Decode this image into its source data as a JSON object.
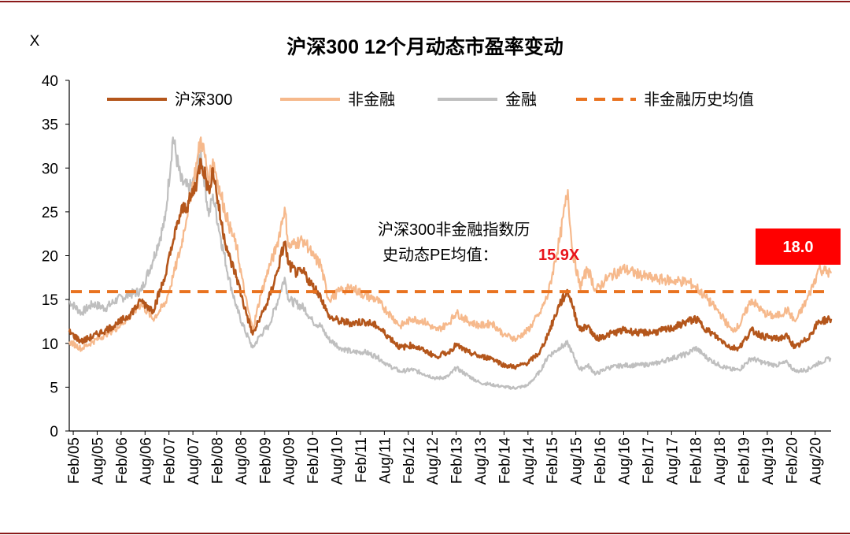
{
  "chart_data": {
    "type": "line",
    "title": "沪深300 12个月动态市盈率变动",
    "ylabel": "X",
    "xlabel": "",
    "ylim": [
      0,
      40
    ],
    "yticks": [
      0,
      5,
      10,
      15,
      20,
      25,
      30,
      35,
      40
    ],
    "grid": false,
    "legend_position": "top",
    "x_tick_labels": [
      "Feb/05",
      "Aug/05",
      "Feb/06",
      "Aug/06",
      "Feb/07",
      "Aug/07",
      "Feb/08",
      "Aug/08",
      "Feb/09",
      "Aug/09",
      "Feb/10",
      "Aug/10",
      "Feb/11",
      "Aug/11",
      "Feb/12",
      "Aug/12",
      "Feb/13",
      "Aug/13",
      "Feb/14",
      "Aug/14",
      "Feb/15",
      "Aug/15",
      "Feb/16",
      "Aug/16",
      "Feb/17",
      "Aug/17",
      "Feb/18",
      "Aug/18",
      "Feb/19",
      "Aug/19",
      "Feb/20",
      "Aug/20"
    ],
    "x_range": [
      "2005-01",
      "2020-12"
    ],
    "series": [
      {
        "name": "沪深300",
        "color": "#b4561b",
        "style": "solid",
        "points": [
          [
            "2005-01",
            11.3
          ],
          [
            "2005-04",
            10.2
          ],
          [
            "2005-07",
            10.8
          ],
          [
            "2005-10",
            11.5
          ],
          [
            "2006-01",
            12.2
          ],
          [
            "2006-04",
            13.2
          ],
          [
            "2006-07",
            14.8
          ],
          [
            "2006-10",
            13.8
          ],
          [
            "2007-01",
            17.5
          ],
          [
            "2007-03",
            21.5
          ],
          [
            "2007-05",
            25.0
          ],
          [
            "2007-07",
            26.0
          ],
          [
            "2007-09",
            28.5
          ],
          [
            "2007-10",
            31.0
          ],
          [
            "2007-12",
            27.5
          ],
          [
            "2008-01",
            30.0
          ],
          [
            "2008-03",
            24.0
          ],
          [
            "2008-05",
            20.0
          ],
          [
            "2008-07",
            17.5
          ],
          [
            "2008-09",
            14.0
          ],
          [
            "2008-11",
            11.0
          ],
          [
            "2009-01",
            13.0
          ],
          [
            "2009-03",
            15.0
          ],
          [
            "2009-05",
            18.0
          ],
          [
            "2009-07",
            21.5
          ],
          [
            "2009-08",
            19.0
          ],
          [
            "2009-10",
            18.0
          ],
          [
            "2009-12",
            18.0
          ],
          [
            "2010-02",
            16.5
          ],
          [
            "2010-04",
            15.5
          ],
          [
            "2010-06",
            13.0
          ],
          [
            "2010-09",
            12.5
          ],
          [
            "2010-12",
            12.3
          ],
          [
            "2011-03",
            12.5
          ],
          [
            "2011-06",
            12.0
          ],
          [
            "2011-09",
            10.8
          ],
          [
            "2011-12",
            9.5
          ],
          [
            "2012-03",
            9.8
          ],
          [
            "2012-06",
            9.2
          ],
          [
            "2012-09",
            8.5
          ],
          [
            "2012-12",
            9.0
          ],
          [
            "2013-02",
            9.8
          ],
          [
            "2013-05",
            9.0
          ],
          [
            "2013-08",
            8.5
          ],
          [
            "2013-11",
            8.3
          ],
          [
            "2014-02",
            7.5
          ],
          [
            "2014-05",
            7.3
          ],
          [
            "2014-08",
            7.8
          ],
          [
            "2014-11",
            9.0
          ],
          [
            "2015-01",
            11.0
          ],
          [
            "2015-04",
            14.5
          ],
          [
            "2015-06",
            16.0
          ],
          [
            "2015-07",
            14.5
          ],
          [
            "2015-09",
            11.5
          ],
          [
            "2015-11",
            12.0
          ],
          [
            "2016-01",
            10.5
          ],
          [
            "2016-04",
            11.0
          ],
          [
            "2016-08",
            11.5
          ],
          [
            "2016-12",
            11.2
          ],
          [
            "2017-04",
            11.3
          ],
          [
            "2017-08",
            11.7
          ],
          [
            "2017-12",
            12.5
          ],
          [
            "2018-02",
            12.8
          ],
          [
            "2018-05",
            11.5
          ],
          [
            "2018-08",
            10.5
          ],
          [
            "2018-11",
            9.5
          ],
          [
            "2019-01",
            9.5
          ],
          [
            "2019-04",
            11.5
          ],
          [
            "2019-07",
            10.8
          ],
          [
            "2019-10",
            10.5
          ],
          [
            "2020-01",
            10.8
          ],
          [
            "2020-03",
            9.5
          ],
          [
            "2020-06",
            10.5
          ],
          [
            "2020-09",
            12.5
          ],
          [
            "2020-12",
            12.8
          ]
        ]
      },
      {
        "name": "非金融",
        "color": "#f6b98c",
        "style": "solid",
        "points": [
          [
            "2005-01",
            10.2
          ],
          [
            "2005-04",
            9.4
          ],
          [
            "2005-07",
            10.2
          ],
          [
            "2005-10",
            11.0
          ],
          [
            "2006-01",
            11.8
          ],
          [
            "2006-04",
            13.0
          ],
          [
            "2006-07",
            14.5
          ],
          [
            "2006-10",
            12.8
          ],
          [
            "2007-01",
            14.5
          ],
          [
            "2007-03",
            17.5
          ],
          [
            "2007-05",
            21.0
          ],
          [
            "2007-07",
            26.0
          ],
          [
            "2007-09",
            30.5
          ],
          [
            "2007-10",
            33.5
          ],
          [
            "2007-12",
            29.0
          ],
          [
            "2008-01",
            31.0
          ],
          [
            "2008-03",
            27.0
          ],
          [
            "2008-05",
            23.5
          ],
          [
            "2008-07",
            21.0
          ],
          [
            "2008-09",
            15.5
          ],
          [
            "2008-11",
            11.5
          ],
          [
            "2009-01",
            15.5
          ],
          [
            "2009-03",
            18.5
          ],
          [
            "2009-05",
            21.0
          ],
          [
            "2009-07",
            25.5
          ],
          [
            "2009-08",
            21.0
          ],
          [
            "2009-10",
            21.5
          ],
          [
            "2009-12",
            21.8
          ],
          [
            "2010-02",
            20.0
          ],
          [
            "2010-04",
            19.0
          ],
          [
            "2010-06",
            15.0
          ],
          [
            "2010-09",
            16.0
          ],
          [
            "2010-12",
            16.3
          ],
          [
            "2011-03",
            15.5
          ],
          [
            "2011-06",
            15.0
          ],
          [
            "2011-09",
            13.5
          ],
          [
            "2011-12",
            12.0
          ],
          [
            "2012-03",
            12.8
          ],
          [
            "2012-06",
            12.5
          ],
          [
            "2012-09",
            11.5
          ],
          [
            "2012-12",
            12.2
          ],
          [
            "2013-02",
            13.5
          ],
          [
            "2013-05",
            12.5
          ],
          [
            "2013-08",
            12.0
          ],
          [
            "2013-11",
            12.3
          ],
          [
            "2014-02",
            11.0
          ],
          [
            "2014-05",
            10.5
          ],
          [
            "2014-08",
            11.5
          ],
          [
            "2014-11",
            13.5
          ],
          [
            "2015-01",
            15.5
          ],
          [
            "2015-04",
            22.0
          ],
          [
            "2015-06",
            27.5
          ],
          [
            "2015-07",
            21.0
          ],
          [
            "2015-09",
            16.5
          ],
          [
            "2015-11",
            18.5
          ],
          [
            "2016-01",
            16.0
          ],
          [
            "2016-04",
            17.5
          ],
          [
            "2016-08",
            18.5
          ],
          [
            "2016-12",
            17.8
          ],
          [
            "2017-04",
            17.3
          ],
          [
            "2017-08",
            17.2
          ],
          [
            "2017-12",
            17.0
          ],
          [
            "2018-02",
            16.5
          ],
          [
            "2018-05",
            15.0
          ],
          [
            "2018-08",
            13.5
          ],
          [
            "2018-11",
            11.5
          ],
          [
            "2019-01",
            12.0
          ],
          [
            "2019-04",
            15.0
          ],
          [
            "2019-07",
            13.5
          ],
          [
            "2019-10",
            13.0
          ],
          [
            "2020-01",
            13.8
          ],
          [
            "2020-03",
            12.5
          ],
          [
            "2020-06",
            15.0
          ],
          [
            "2020-09",
            18.5
          ],
          [
            "2020-12",
            18.0
          ]
        ]
      },
      {
        "name": "金融",
        "color": "#bfbfbf",
        "style": "solid",
        "points": [
          [
            "2005-01",
            14.8
          ],
          [
            "2005-04",
            13.5
          ],
          [
            "2005-07",
            14.5
          ],
          [
            "2005-10",
            14.0
          ],
          [
            "2006-01",
            15.0
          ],
          [
            "2006-04",
            15.5
          ],
          [
            "2006-07",
            16.0
          ],
          [
            "2006-10",
            19.5
          ],
          [
            "2007-01",
            24.0
          ],
          [
            "2007-03",
            33.5
          ],
          [
            "2007-05",
            28.5
          ],
          [
            "2007-07",
            27.5
          ],
          [
            "2007-09",
            29.0
          ],
          [
            "2007-10",
            32.0
          ],
          [
            "2007-12",
            24.5
          ],
          [
            "2008-01",
            27.0
          ],
          [
            "2008-03",
            22.0
          ],
          [
            "2008-05",
            17.5
          ],
          [
            "2008-07",
            14.0
          ],
          [
            "2008-09",
            11.5
          ],
          [
            "2008-11",
            9.5
          ],
          [
            "2009-01",
            11.0
          ],
          [
            "2009-03",
            12.0
          ],
          [
            "2009-05",
            14.5
          ],
          [
            "2009-07",
            17.5
          ],
          [
            "2009-08",
            15.0
          ],
          [
            "2009-10",
            14.5
          ],
          [
            "2009-12",
            14.0
          ],
          [
            "2010-02",
            12.5
          ],
          [
            "2010-04",
            12.0
          ],
          [
            "2010-06",
            10.5
          ],
          [
            "2010-09",
            9.5
          ],
          [
            "2010-12",
            9.0
          ],
          [
            "2011-03",
            9.0
          ],
          [
            "2011-06",
            8.5
          ],
          [
            "2011-09",
            7.5
          ],
          [
            "2011-12",
            6.8
          ],
          [
            "2012-03",
            7.0
          ],
          [
            "2012-06",
            6.5
          ],
          [
            "2012-09",
            6.0
          ],
          [
            "2012-12",
            6.2
          ],
          [
            "2013-02",
            7.2
          ],
          [
            "2013-05",
            6.3
          ],
          [
            "2013-08",
            5.5
          ],
          [
            "2013-11",
            5.3
          ],
          [
            "2014-02",
            5.0
          ],
          [
            "2014-05",
            4.9
          ],
          [
            "2014-08",
            5.2
          ],
          [
            "2014-11",
            6.8
          ],
          [
            "2015-01",
            8.5
          ],
          [
            "2015-04",
            9.5
          ],
          [
            "2015-06",
            10.0
          ],
          [
            "2015-07",
            9.0
          ],
          [
            "2015-09",
            7.0
          ],
          [
            "2015-11",
            7.5
          ],
          [
            "2016-01",
            6.5
          ],
          [
            "2016-04",
            7.2
          ],
          [
            "2016-08",
            7.5
          ],
          [
            "2016-12",
            7.5
          ],
          [
            "2017-04",
            7.7
          ],
          [
            "2017-08",
            8.3
          ],
          [
            "2017-12",
            8.8
          ],
          [
            "2018-02",
            9.5
          ],
          [
            "2018-05",
            8.3
          ],
          [
            "2018-08",
            7.5
          ],
          [
            "2018-11",
            7.0
          ],
          [
            "2019-01",
            7.0
          ],
          [
            "2019-04",
            8.3
          ],
          [
            "2019-07",
            7.8
          ],
          [
            "2019-10",
            7.5
          ],
          [
            "2020-01",
            7.8
          ],
          [
            "2020-03",
            6.8
          ],
          [
            "2020-06",
            7.0
          ],
          [
            "2020-09",
            7.8
          ],
          [
            "2020-12",
            8.3
          ]
        ]
      },
      {
        "name": "非金融历史均值",
        "color": "#e97320",
        "style": "dashed",
        "value": 15.9
      }
    ],
    "annotation": {
      "line1": "沪深300非金融指数历",
      "line2": "史动态PE均值：",
      "value": "15.9X"
    },
    "callout": {
      "value": "18.0",
      "color": "#ff0000"
    }
  }
}
